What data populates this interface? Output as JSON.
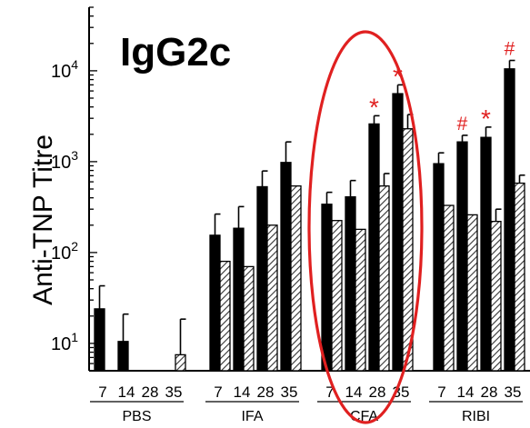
{
  "chart_data": {
    "type": "bar",
    "title": "IgG2c",
    "ylabel": "Anti-TNP Titre",
    "xlabel": "",
    "yscale": "log",
    "ylim": [
      5,
      50000
    ],
    "yticks": [
      {
        "value": 10,
        "base": "10",
        "exp": "1"
      },
      {
        "value": 100,
        "base": "10",
        "exp": "2"
      },
      {
        "value": 1000,
        "base": "10",
        "exp": "3"
      },
      {
        "value": 10000,
        "base": "10",
        "exp": "4"
      }
    ],
    "groups": [
      {
        "name": "PBS",
        "days": [
          "7",
          "14",
          "28",
          "35"
        ]
      },
      {
        "name": "IFA",
        "days": [
          "7",
          "14",
          "28",
          "35"
        ]
      },
      {
        "name": "CFA",
        "days": [
          "7",
          "14",
          "28",
          "35"
        ]
      },
      {
        "name": "RIBI",
        "days": [
          "7",
          "14",
          "28",
          "35"
        ]
      }
    ],
    "series": [
      {
        "fill": "solid",
        "color": "#000000",
        "values": [
          [
            24,
            10.5,
            null,
            null
          ],
          [
            155,
            185,
            530,
            980
          ],
          [
            340,
            410,
            2600,
            5600
          ],
          [
            950,
            1650,
            1850,
            10500
          ]
        ],
        "errors": [
          [
            43,
            21,
            null,
            null
          ],
          [
            265,
            320,
            790,
            1650
          ],
          [
            460,
            620,
            3200,
            7000
          ],
          [
            1250,
            1950,
            2400,
            13000
          ]
        ]
      },
      {
        "fill": "hatched",
        "color": "#ffffff",
        "values": [
          [
            null,
            null,
            null,
            7.5
          ],
          [
            80,
            70,
            200,
            540
          ],
          [
            225,
            180,
            540,
            2300
          ],
          [
            330,
            260,
            220,
            580
          ]
        ],
        "errors": [
          [
            null,
            null,
            null,
            18.5
          ],
          [
            null,
            null,
            null,
            null
          ],
          [
            null,
            null,
            740,
            3300
          ],
          [
            null,
            null,
            300,
            710
          ]
        ]
      }
    ],
    "annotations": [
      {
        "text": "*",
        "color": "#e02020",
        "group": 2,
        "bar": 2
      },
      {
        "text": "*",
        "color": "#e02020",
        "group": 2,
        "bar": 3
      },
      {
        "text": "#",
        "color": "#e02020",
        "group": 3,
        "bar": 1
      },
      {
        "text": "*",
        "color": "#e02020",
        "group": 3,
        "bar": 2
      },
      {
        "text": "#",
        "color": "#e02020",
        "group": 3,
        "bar": 3
      }
    ],
    "highlight": {
      "shape": "ellipse",
      "color": "#e02020",
      "group": 2
    },
    "grid": false,
    "legend": "none"
  }
}
